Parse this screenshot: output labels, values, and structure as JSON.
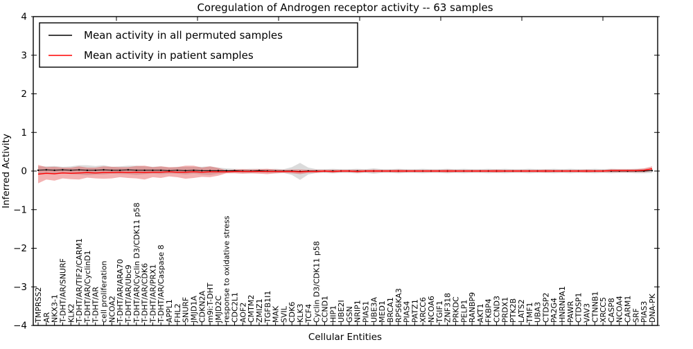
{
  "chart_data": {
    "type": "line",
    "title": "Coregulation of Androgen receptor activity -- 63 samples",
    "xlabel": "Cellular Entities",
    "ylabel": "Inferred Activity",
    "ylim": [
      -4,
      4
    ],
    "yticks": [
      "4",
      "3",
      "2",
      "1",
      "0",
      "−1",
      "−2",
      "−3",
      "−4"
    ],
    "ytick_values": [
      4,
      3,
      2,
      1,
      0,
      -1,
      -2,
      -3,
      -4
    ],
    "grid": false,
    "legend_position": "upper-left",
    "legend": [
      {
        "label": "Mean activity in all permuted samples",
        "color": "#000000"
      },
      {
        "label": "Mean activity in patient samples",
        "color": "#ff0000"
      }
    ],
    "colors": {
      "permuted_line": "#000000",
      "patient_line": "#ff0000",
      "permuted_band": "#888888",
      "patient_band": "#dd2222",
      "frame": "#000000"
    },
    "categories": [
      "TMPRSS2",
      "AR",
      "NKX3-1",
      "T-DHT/AR/SNURF",
      "KLK2",
      "T-DHT/AR/TIF2/CARM1",
      "T-DHT/AR/CyclinD1",
      "T-DHT/AR",
      "cell proliferation",
      "NCOA2",
      "T-DHT/AR/ARA70",
      "T-DHT/AR/Ubc9",
      "T-DHT/AR/Cyclin D3/CDK11 p58",
      "T-DHT/AR/CDK6",
      "T-DHT/AR/PRX1",
      "T-DHT/AR/Caspase 8",
      "APPL1",
      "FHL2",
      "SNURF",
      "JMJD1A",
      "CDKN2A",
      "m9i:T-DHT",
      "JMJD2C",
      "response to oxidative stress",
      "CDC2L1",
      "AOF2",
      "CMTM2",
      "ZMIZ1",
      "TGFB1I1",
      "MAK",
      "SVIL",
      "CDK6",
      "KLK3",
      "TCF4",
      "Cyclin D3/CDK11 p58",
      "CCND1",
      "HIP1",
      "UBE2I",
      "GSN",
      "NRIP1",
      "PIAS1",
      "UBE3A",
      "MED1",
      "BRCA1",
      "RPS6KA3",
      "PIAS4",
      "PATZ1",
      "XRCC6",
      "NCOA6",
      "TGIF1",
      "ZNF318",
      "PRKDC",
      "PELP1",
      "RANBP9",
      "AKT1",
      "FKBP4",
      "CCND3",
      "PRDX1",
      "PTK2B",
      "LATS2",
      "TMF1",
      "UBA3",
      "CTDSP2",
      "PA2G4",
      "HNRNPA1",
      "PAWR",
      "CTDSP1",
      "VAV3",
      "CTNNB1",
      "XRCC5",
      "CASP8",
      "NCOA4",
      "CARM1",
      "SRF",
      "PIAS3",
      "DNA-PK"
    ],
    "series": [
      {
        "name": "Mean activity in all permuted samples",
        "mean": [
          0.02,
          0.03,
          0.02,
          0.03,
          0.02,
          0.03,
          0.02,
          0.02,
          0.03,
          0.02,
          0.02,
          0.03,
          0.02,
          0.02,
          0.02,
          0.02,
          0.01,
          0.02,
          0.01,
          0.02,
          0.01,
          0.01,
          0.01,
          0.01,
          0.01,
          0.0,
          0.0,
          0.01,
          0.0,
          0.0,
          0.0,
          0.0,
          -0.01,
          0.0,
          0.0,
          0.0,
          0.0,
          0.0,
          0.0,
          0.0,
          0.0,
          0.0,
          0.0,
          0.0,
          0.0,
          0.0,
          0.0,
          0.0,
          0.0,
          0.0,
          0.0,
          0.0,
          0.0,
          0.0,
          0.0,
          0.0,
          0.0,
          0.0,
          0.0,
          0.0,
          0.0,
          0.0,
          0.0,
          0.0,
          0.0,
          0.0,
          0.0,
          0.0,
          0.0,
          0.0,
          0.0,
          0.0,
          0.0,
          0.0,
          0.0,
          0.01
        ],
        "std": [
          0.1,
          0.09,
          0.11,
          0.08,
          0.1,
          0.12,
          0.13,
          0.11,
          0.12,
          0.09,
          0.1,
          0.11,
          0.12,
          0.1,
          0.09,
          0.1,
          0.08,
          0.09,
          0.1,
          0.09,
          0.1,
          0.11,
          0.08,
          0.06,
          0.05,
          0.05,
          0.06,
          0.05,
          0.05,
          0.06,
          0.05,
          0.1,
          0.22,
          0.09,
          0.05,
          0.05,
          0.06,
          0.05,
          0.05,
          0.06,
          0.05,
          0.07,
          0.05,
          0.05,
          0.06,
          0.05,
          0.05,
          0.06,
          0.05,
          0.05,
          0.06,
          0.05,
          0.06,
          0.05,
          0.05,
          0.06,
          0.05,
          0.06,
          0.05,
          0.05,
          0.06,
          0.05,
          0.05,
          0.06,
          0.05,
          0.06,
          0.05,
          0.05,
          0.06,
          0.05,
          0.06,
          0.05,
          0.05,
          0.06,
          0.06,
          0.06
        ]
      },
      {
        "name": "Mean activity in patient samples",
        "mean": [
          -0.08,
          -0.06,
          -0.07,
          -0.05,
          -0.06,
          -0.05,
          -0.04,
          -0.05,
          -0.04,
          -0.04,
          -0.03,
          -0.04,
          -0.03,
          -0.04,
          -0.03,
          -0.03,
          -0.02,
          -0.03,
          -0.03,
          -0.02,
          -0.03,
          -0.02,
          -0.02,
          -0.02,
          -0.01,
          -0.01,
          -0.01,
          -0.01,
          -0.01,
          -0.01,
          -0.01,
          -0.01,
          -0.02,
          -0.01,
          -0.01,
          0.0,
          -0.01,
          0.0,
          0.0,
          -0.01,
          0.0,
          0.0,
          0.0,
          0.0,
          0.0,
          0.0,
          0.0,
          0.0,
          0.0,
          0.0,
          0.0,
          0.0,
          0.0,
          0.0,
          0.0,
          0.0,
          0.0,
          0.0,
          0.0,
          0.0,
          0.0,
          0.0,
          0.0,
          0.0,
          0.0,
          0.0,
          0.0,
          0.0,
          0.0,
          0.0,
          0.01,
          0.01,
          0.01,
          0.01,
          0.02,
          0.06
        ],
        "std": [
          0.24,
          0.16,
          0.18,
          0.14,
          0.15,
          0.17,
          0.13,
          0.14,
          0.16,
          0.15,
          0.13,
          0.14,
          0.16,
          0.18,
          0.13,
          0.15,
          0.12,
          0.13,
          0.17,
          0.16,
          0.12,
          0.14,
          0.1,
          0.04,
          0.05,
          0.06,
          0.05,
          0.06,
          0.07,
          0.05,
          0.04,
          0.05,
          0.06,
          0.04,
          0.04,
          0.03,
          0.04,
          0.03,
          0.03,
          0.04,
          0.03,
          0.04,
          0.03,
          0.03,
          0.04,
          0.03,
          0.03,
          0.03,
          0.03,
          0.03,
          0.04,
          0.03,
          0.03,
          0.03,
          0.03,
          0.03,
          0.04,
          0.03,
          0.03,
          0.03,
          0.03,
          0.03,
          0.04,
          0.03,
          0.03,
          0.03,
          0.03,
          0.04,
          0.03,
          0.03,
          0.04,
          0.04,
          0.04,
          0.04,
          0.05,
          0.06
        ]
      }
    ]
  }
}
